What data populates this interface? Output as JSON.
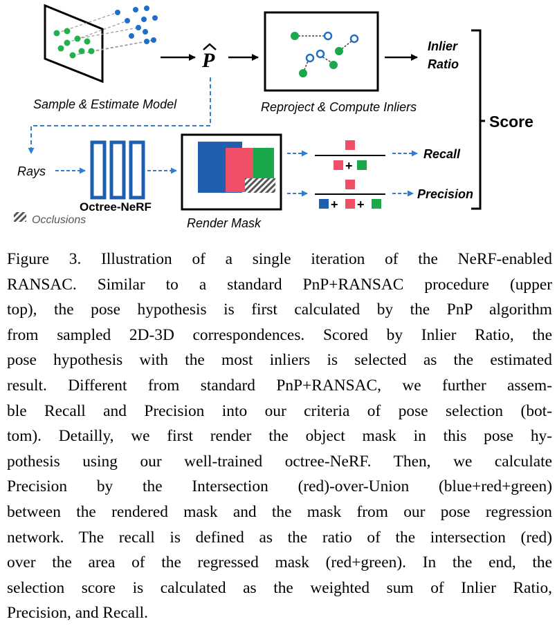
{
  "figure": {
    "labels": {
      "sample_estimate": "Sample & Estimate Model",
      "p_hat": "P",
      "reproject": "Reproject & Compute Inliers",
      "inlier": "Inlier",
      "ratio": "Ratio",
      "score": "Score",
      "rays": "Rays",
      "octree_nerf": "Octree-NeRF",
      "render_mask": "Render Mask",
      "occlusions": "Occlusions",
      "recall": "Recall",
      "precision": "Precision"
    },
    "colors": {
      "blue": "#1f5fb2",
      "red": "#ef5068",
      "green": "#1aa84a",
      "point_green": "#22b14c",
      "point_blue": "#1f6fc8",
      "dash_blue": "#2e7fd1"
    }
  },
  "caption": {
    "lines": [
      "Figure 3. Illustration of a single iteration of the NeRF-enabled",
      "RANSAC. Similar to a standard PnP+RANSAC procedure (upper",
      "top), the pose hypothesis is first calculated by the PnP algorithm",
      "from sampled 2D-3D correspondences. Scored by Inlier Ratio, the",
      "pose hypothesis with the most inliers is selected as the estimated",
      "result. Different from standard PnP+RANSAC, we further assem-",
      "ble Recall and Precision into our criteria of pose selection (bot-",
      "tom).  Detailly, we first render the object mask in this pose hy-",
      "pothesis using our well-trained octree-NeRF. Then, we calculate",
      "Precision by the Intersection (red)-over-Union (blue+red+green)",
      "between the rendered mask and the mask from our pose regression",
      "network. The recall is defined as the ratio of the intersection (red)",
      "over the area of the regressed mask (red+green).  In the end, the",
      "selection score is calculated as the weighted sum of Inlier Ratio,",
      "Precision, and Recall."
    ]
  }
}
